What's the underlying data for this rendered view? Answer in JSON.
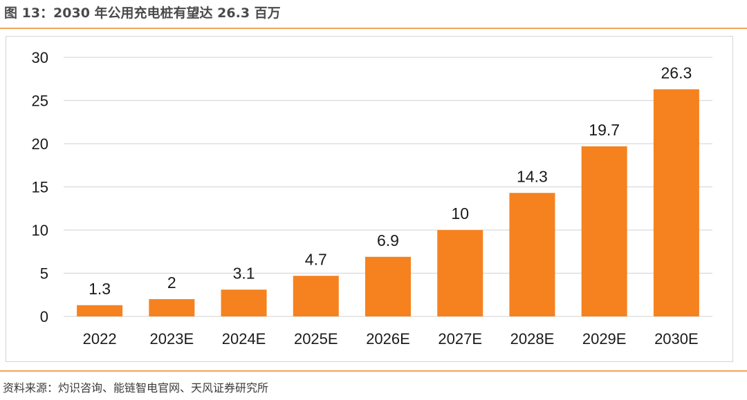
{
  "figure": {
    "title": "图 13：2030 年公用充电桩有望达 26.3 百万",
    "source": "资料来源：灼识咨询、能链智电官网、天风证券研究所"
  },
  "colors": {
    "bar": "#f5821f",
    "rule": "#f4a35a",
    "grid": "#d9d9d9",
    "text": "#1a1a1a"
  },
  "chart_data": {
    "type": "bar",
    "categories": [
      "2022",
      "2023E",
      "2024E",
      "2025E",
      "2026E",
      "2027E",
      "2028E",
      "2029E",
      "2030E"
    ],
    "values": [
      1.3,
      2,
      3.1,
      4.7,
      6.9,
      10,
      14.3,
      19.7,
      26.3
    ],
    "data_labels": [
      "1.3",
      "2",
      "3.1",
      "4.7",
      "6.9",
      "10",
      "14.3",
      "19.7",
      "26.3"
    ],
    "yticks": [
      "0",
      "5",
      "10",
      "15",
      "20",
      "25",
      "30"
    ],
    "ylim": [
      0,
      30
    ],
    "grid": true,
    "legend": false
  }
}
